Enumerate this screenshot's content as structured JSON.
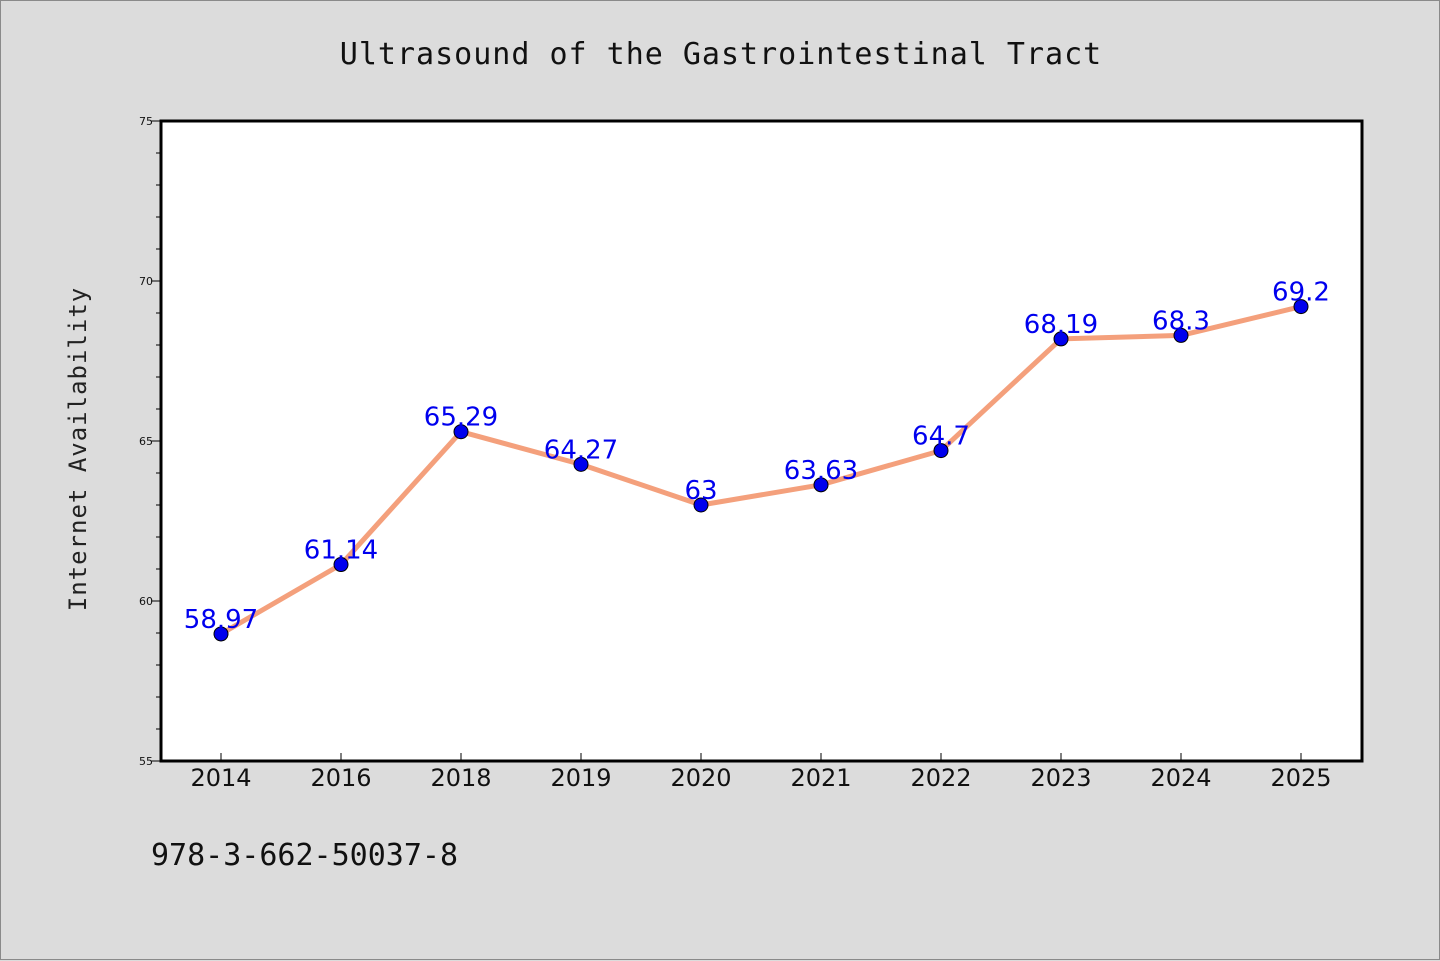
{
  "chart_data": {
    "type": "line",
    "title": "Ultrasound of the Gastrointestinal Tract",
    "ylabel": "Internet Availability",
    "xlabel": "",
    "categories": [
      "2014",
      "2016",
      "2018",
      "2019",
      "2020",
      "2021",
      "2022",
      "2023",
      "2024",
      "2025"
    ],
    "series": [
      {
        "values": [
          58.97,
          61.14,
          65.29,
          64.27,
          63,
          63.63,
          64.7,
          68.19,
          68.3,
          69.2
        ],
        "data_labels": [
          "58.97",
          "61.14",
          "65.29",
          "64.27",
          "63",
          "63.63",
          "64.7",
          "68.19",
          "68.3",
          "69.2"
        ],
        "line_color": "#f4a07c",
        "marker_color": "#0000ee"
      }
    ],
    "ylim": [
      55,
      75
    ],
    "yticks": [
      55,
      60,
      65,
      70,
      75
    ],
    "grid": false,
    "legend": "none"
  },
  "footer": {
    "isbn": "978-3-662-50037-8"
  },
  "colors": {
    "background": "#dcdcdc",
    "plot_area": "#ffffff"
  }
}
